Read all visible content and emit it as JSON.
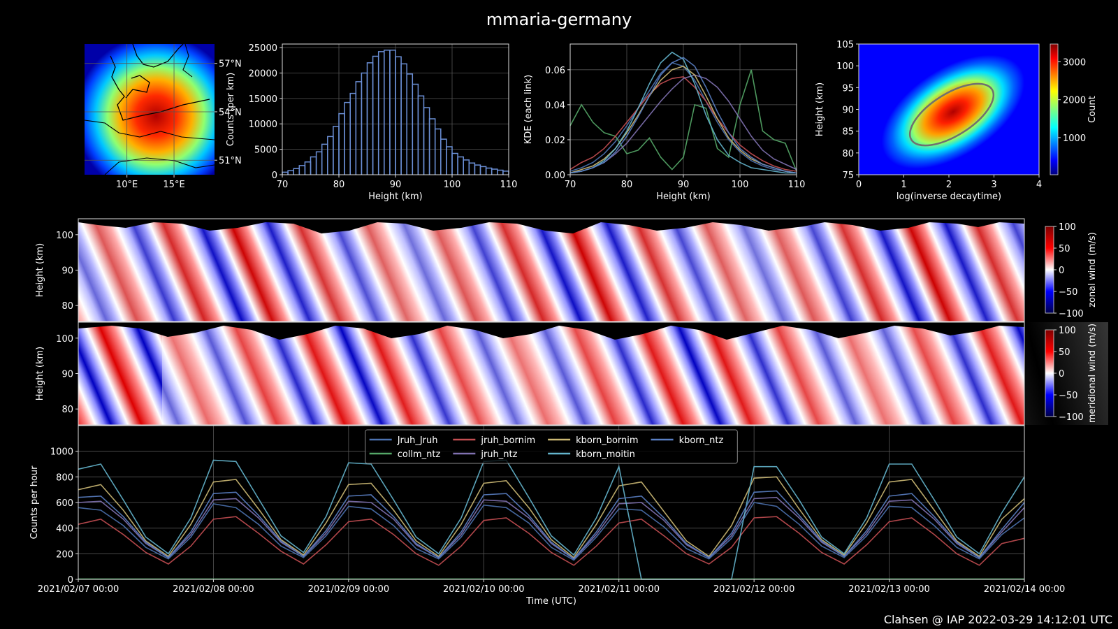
{
  "title": "mmaria-germany",
  "footer": "Clahsen @ IAP 2022-03-29 14:12:01 UTC",
  "chart_data": [
    {
      "type": "map",
      "colormap": "jet",
      "xlim": [
        5.5,
        19.3
      ],
      "ylim": [
        50.1,
        58.2
      ],
      "xticks": [
        {
          "value": 10,
          "label": "10°E"
        },
        {
          "value": 15,
          "label": "15°E"
        }
      ],
      "yticks": [
        {
          "value": 51,
          "label": "51°N"
        },
        {
          "value": 54,
          "label": "54°N"
        },
        {
          "value": 57,
          "label": "57°N"
        }
      ],
      "grid": true
    },
    {
      "type": "histogram",
      "xlabel": "Height (km)",
      "ylabel": "Counts (per km)",
      "bins": [
        70,
        71,
        72,
        73,
        74,
        75,
        76,
        77,
        78,
        79,
        80,
        81,
        82,
        83,
        84,
        85,
        86,
        87,
        88,
        89,
        90,
        91,
        92,
        93,
        94,
        95,
        96,
        97,
        98,
        99,
        100,
        101,
        102,
        103,
        104,
        105,
        106,
        107,
        108,
        109,
        110
      ],
      "values": [
        500,
        800,
        1200,
        1800,
        2500,
        3500,
        4500,
        6000,
        7500,
        9500,
        12000,
        14200,
        16000,
        18300,
        20000,
        22000,
        23300,
        24200,
        24500,
        24500,
        23200,
        21800,
        19800,
        17800,
        15500,
        13200,
        11000,
        9000,
        7000,
        5500,
        4200,
        3500,
        2900,
        2300,
        1900,
        1600,
        1300,
        1100,
        900,
        700
      ],
      "color": "#6b8fd6",
      "xlim": [
        70,
        110
      ],
      "ylim": [
        0,
        25700
      ],
      "xticks": [
        70,
        80,
        90,
        100,
        110
      ],
      "yticks": [
        0,
        5000,
        10000,
        15000,
        20000,
        25000
      ],
      "grid": true
    },
    {
      "type": "line",
      "xlabel": "Height (km)",
      "ylabel": "KDE (each link)",
      "x": [
        70,
        72,
        74,
        76,
        78,
        80,
        82,
        84,
        86,
        88,
        90,
        92,
        94,
        96,
        98,
        100,
        102,
        104,
        106,
        108,
        110
      ],
      "series": [
        {
          "color": "#4c72b0",
          "values": [
            0.002,
            0.004,
            0.007,
            0.012,
            0.019,
            0.028,
            0.038,
            0.048,
            0.058,
            0.064,
            0.062,
            0.054,
            0.042,
            0.03,
            0.02,
            0.013,
            0.008,
            0.005,
            0.003,
            0.002,
            0.001
          ]
        },
        {
          "color": "#55a868",
          "values": [
            0.028,
            0.04,
            0.03,
            0.024,
            0.022,
            0.012,
            0.014,
            0.021,
            0.01,
            0.003,
            0.01,
            0.04,
            0.038,
            0.015,
            0.01,
            0.04,
            0.06,
            0.025,
            0.02,
            0.018,
            0.002
          ]
        },
        {
          "color": "#c44e52",
          "values": [
            0.003,
            0.007,
            0.01,
            0.015,
            0.022,
            0.03,
            0.038,
            0.046,
            0.052,
            0.055,
            0.056,
            0.05,
            0.042,
            0.032,
            0.024,
            0.017,
            0.012,
            0.008,
            0.005,
            0.003,
            0.002
          ]
        },
        {
          "color": "#8172b2",
          "values": [
            0.001,
            0.002,
            0.004,
            0.007,
            0.012,
            0.018,
            0.026,
            0.034,
            0.042,
            0.049,
            0.055,
            0.057,
            0.055,
            0.05,
            0.042,
            0.032,
            0.022,
            0.014,
            0.009,
            0.006,
            0.003
          ]
        },
        {
          "color": "#ccb974",
          "values": [
            0.001,
            0.003,
            0.005,
            0.009,
            0.015,
            0.024,
            0.034,
            0.045,
            0.054,
            0.06,
            0.062,
            0.057,
            0.045,
            0.032,
            0.021,
            0.014,
            0.009,
            0.006,
            0.004,
            0.002,
            0.001
          ]
        },
        {
          "color": "#64b5cd",
          "values": [
            0.001,
            0.002,
            0.004,
            0.008,
            0.015,
            0.025,
            0.038,
            0.052,
            0.064,
            0.07,
            0.066,
            0.052,
            0.034,
            0.02,
            0.011,
            0.007,
            0.004,
            0.003,
            0.002,
            0.001,
            0.001
          ]
        },
        {
          "color": "#5a7fc4",
          "values": [
            0.001,
            0.002,
            0.004,
            0.007,
            0.013,
            0.022,
            0.033,
            0.045,
            0.057,
            0.064,
            0.067,
            0.062,
            0.05,
            0.036,
            0.024,
            0.015,
            0.01,
            0.006,
            0.004,
            0.002,
            0.001
          ]
        }
      ],
      "xlim": [
        70,
        110
      ],
      "ylim": [
        0,
        0.0747
      ],
      "xticks": [
        70,
        80,
        90,
        100,
        110
      ],
      "yticks": [
        {
          "value": 0,
          "label": "0.00"
        },
        0.02,
        0.04,
        0.06
      ],
      "grid": true
    },
    {
      "type": "heatmap",
      "colormap": "jet",
      "xlabel": "log(inverse decaytime)",
      "ylabel": "Height (km)",
      "colorbar_label": "Count",
      "xlim": [
        0,
        4
      ],
      "ylim": [
        75,
        105
      ],
      "xticks": [
        0,
        1,
        2,
        3,
        4
      ],
      "yticks": [
        75,
        80,
        85,
        90,
        95,
        100,
        105
      ],
      "clim": [
        20,
        3470
      ],
      "cticks": [
        1000,
        2000,
        3000
      ]
    },
    {
      "type": "heatmap",
      "colormap": "seismic",
      "ylabel": "Height (km)",
      "colorbar_label": "zonal wind (m/s)",
      "ylim": [
        75.5,
        104.5
      ],
      "yticks": [
        80,
        90,
        100
      ],
      "clim": [
        -100,
        100
      ],
      "cticks": [
        {
          "value": -100,
          "label": "−100"
        },
        {
          "value": -50,
          "label": "−50"
        },
        0,
        50,
        100
      ]
    },
    {
      "type": "heatmap",
      "colormap": "seismic",
      "ylabel": "Height (km)",
      "colorbar_label": "meridional wind (m/s)",
      "ylim": [
        75.5,
        104.5
      ],
      "yticks": [
        80,
        90,
        100
      ],
      "clim": [
        -100,
        100
      ],
      "cticks": [
        {
          "value": -100,
          "label": "−100"
        },
        {
          "value": -50,
          "label": "−50"
        },
        0,
        50,
        100
      ]
    },
    {
      "type": "line",
      "xlabel": "Time (UTC)",
      "ylabel": "Counts per hour",
      "legend": "upper center",
      "x": [
        "2021/02/07 00:00",
        "2021/02/07 04:00",
        "2021/02/07 08:00",
        "2021/02/07 12:00",
        "2021/02/07 16:00",
        "2021/02/07 20:00",
        "2021/02/08 00:00",
        "2021/02/08 04:00",
        "2021/02/08 08:00",
        "2021/02/08 12:00",
        "2021/02/08 16:00",
        "2021/02/08 20:00",
        "2021/02/09 00:00",
        "2021/02/09 04:00",
        "2021/02/09 08:00",
        "2021/02/09 12:00",
        "2021/02/09 16:00",
        "2021/02/09 20:00",
        "2021/02/10 00:00",
        "2021/02/10 04:00",
        "2021/02/10 08:00",
        "2021/02/10 12:00",
        "2021/02/10 16:00",
        "2021/02/10 20:00",
        "2021/02/11 00:00",
        "2021/02/11 04:00",
        "2021/02/11 08:00",
        "2021/02/11 12:00",
        "2021/02/11 16:00",
        "2021/02/11 20:00",
        "2021/02/12 00:00",
        "2021/02/12 04:00",
        "2021/02/12 08:00",
        "2021/02/12 12:00",
        "2021/02/12 16:00",
        "2021/02/12 20:00",
        "2021/02/13 00:00",
        "2021/02/13 04:00",
        "2021/02/13 08:00",
        "2021/02/13 12:00",
        "2021/02/13 16:00",
        "2021/02/13 20:00",
        "2021/02/14 00:00"
      ],
      "series": [
        {
          "name": "Jruh_Jruh",
          "color": "#4c72b0",
          "values": [
            560,
            540,
            420,
            250,
            160,
            330,
            590,
            560,
            430,
            260,
            170,
            340,
            570,
            550,
            420,
            240,
            160,
            330,
            580,
            560,
            440,
            250,
            150,
            330,
            550,
            540,
            410,
            240,
            160,
            320,
            600,
            570,
            430,
            260,
            170,
            340,
            570,
            560,
            420,
            250,
            160,
            350,
            480
          ]
        },
        {
          "name": "collm_ntz",
          "color": "#55a868",
          "values": [
            3,
            3,
            3,
            3,
            3,
            3,
            3,
            3,
            3,
            3,
            3,
            3,
            3,
            3,
            3,
            3,
            3,
            3,
            3,
            3,
            3,
            3,
            3,
            3,
            3,
            3,
            3,
            3,
            3,
            3,
            3,
            3,
            3,
            3,
            3,
            3,
            3,
            3,
            3,
            3,
            3,
            3,
            3
          ]
        },
        {
          "name": "jruh_bornim",
          "color": "#c44e52",
          "values": [
            430,
            470,
            350,
            210,
            120,
            260,
            470,
            490,
            360,
            220,
            120,
            270,
            450,
            470,
            350,
            200,
            110,
            260,
            460,
            480,
            360,
            210,
            110,
            260,
            440,
            470,
            340,
            200,
            120,
            250,
            480,
            490,
            360,
            210,
            120,
            270,
            450,
            480,
            350,
            200,
            110,
            280,
            320
          ]
        },
        {
          "name": "jruh_ntz",
          "color": "#8172b2",
          "values": [
            600,
            610,
            470,
            280,
            170,
            350,
            620,
            630,
            480,
            290,
            180,
            360,
            610,
            600,
            470,
            270,
            170,
            350,
            620,
            610,
            480,
            280,
            160,
            350,
            590,
            600,
            460,
            270,
            170,
            340,
            630,
            640,
            480,
            290,
            180,
            360,
            610,
            620,
            470,
            280,
            170,
            370,
            560
          ]
        },
        {
          "name": "kborn_bornim",
          "color": "#ccb974",
          "values": [
            700,
            740,
            540,
            300,
            180,
            430,
            760,
            780,
            550,
            310,
            190,
            440,
            740,
            750,
            540,
            300,
            180,
            430,
            750,
            770,
            560,
            310,
            170,
            430,
            730,
            760,
            530,
            300,
            180,
            420,
            790,
            800,
            550,
            310,
            190,
            440,
            760,
            780,
            540,
            300,
            180,
            470,
            630
          ]
        },
        {
          "name": "kborn_moitin",
          "color": "#64b5cd",
          "values": [
            860,
            900,
            620,
            330,
            200,
            480,
            930,
            920,
            630,
            340,
            210,
            490,
            910,
            900,
            620,
            330,
            200,
            480,
            920,
            930,
            640,
            340,
            190,
            480,
            880,
            0,
            0,
            0,
            0,
            0,
            880,
            880,
            620,
            330,
            200,
            480,
            900,
            900,
            620,
            330,
            200,
            520,
            800
          ]
        },
        {
          "name": "kborn_ntz",
          "color": "#5a7fc4",
          "values": [
            640,
            650,
            490,
            290,
            170,
            370,
            670,
            680,
            500,
            300,
            180,
            380,
            650,
            660,
            490,
            280,
            170,
            370,
            660,
            670,
            500,
            290,
            160,
            370,
            630,
            650,
            480,
            280,
            170,
            360,
            680,
            690,
            500,
            300,
            180,
            380,
            650,
            670,
            490,
            290,
            170,
            390,
            600
          ]
        }
      ],
      "xlim": [
        "2021/02/07 00:00",
        "2021/02/14 00:00"
      ],
      "xticks": [
        "2021/02/07 00:00",
        "2021/02/08 00:00",
        "2021/02/09 00:00",
        "2021/02/10 00:00",
        "2021/02/11 00:00",
        "2021/02/12 00:00",
        "2021/02/13 00:00",
        "2021/02/14 00:00"
      ],
      "ylim": [
        0,
        1200
      ],
      "yticks": [
        0,
        200,
        400,
        600,
        800,
        1000
      ],
      "grid": true
    }
  ]
}
